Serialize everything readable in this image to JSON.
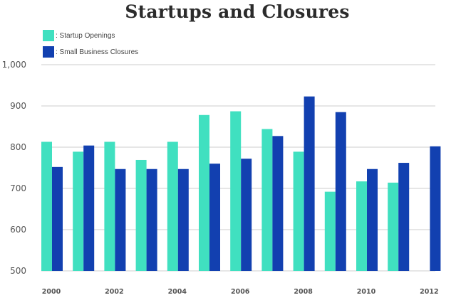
{
  "chart_data": {
    "type": "bar",
    "title": "Startups and Closures",
    "xlabel": "",
    "ylabel": "",
    "ylim": [
      500,
      1000
    ],
    "yticks": [
      500,
      600,
      700,
      800,
      900,
      1000
    ],
    "ytick_labels": [
      "500",
      "600",
      "700",
      "800",
      "900",
      "1,000"
    ],
    "grid": true,
    "legend_position": "top-left",
    "categories": [
      "2000",
      "2001",
      "2002",
      "2003",
      "2004",
      "2005",
      "2006",
      "2007",
      "2008",
      "2009",
      "2010",
      "2011",
      "2012"
    ],
    "xtick_labels": [
      "2000",
      "",
      "2002",
      "",
      "2004",
      "",
      "2006",
      "",
      "2008",
      "",
      "2010",
      "",
      "2012"
    ],
    "series": [
      {
        "name": "Startup Openings",
        "legend_label": ": Startup Openings",
        "color": "#40E0C0",
        "values": [
          813,
          789,
          813,
          769,
          813,
          878,
          887,
          844,
          789,
          692,
          717,
          714,
          null
        ]
      },
      {
        "name": "Small Business Closures",
        "legend_label": ": Small Business Closures",
        "color": "#1240B0",
        "values": [
          752,
          804,
          747,
          747,
          747,
          760,
          772,
          827,
          923,
          885,
          747,
          762,
          802
        ]
      }
    ]
  }
}
